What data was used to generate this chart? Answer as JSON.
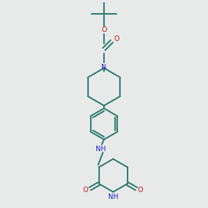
{
  "bg": "#e8eaea",
  "bc": "#2a7a6e",
  "nc": "#1a1acc",
  "oc": "#cc1111",
  "lw": 1.5,
  "dpi": 100,
  "figsize": [
    3.0,
    3.0
  ],
  "xlim": [
    -2.8,
    2.8
  ],
  "ylim": [
    -4.8,
    4.2
  ]
}
